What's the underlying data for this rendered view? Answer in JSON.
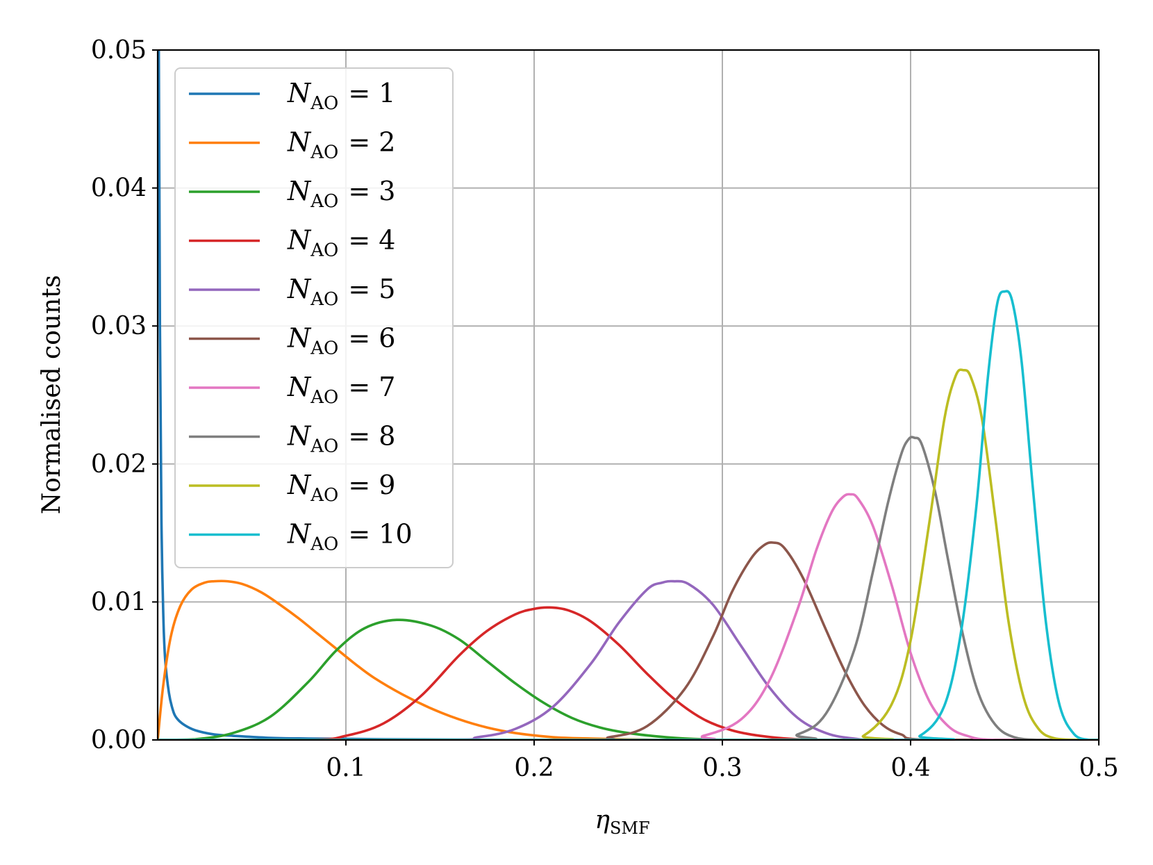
{
  "chart_data": {
    "type": "line",
    "title": "",
    "xlabel": "η",
    "xlabel_sub": "SMF",
    "ylabel": "Normalised counts",
    "xlim": [
      0.0,
      0.5
    ],
    "ylim": [
      0.0,
      0.05
    ],
    "xticks": [
      {
        "value": 0.1,
        "label": "0.1"
      },
      {
        "value": 0.2,
        "label": "0.2"
      },
      {
        "value": 0.3,
        "label": "0.3"
      },
      {
        "value": 0.4,
        "label": "0.4"
      },
      {
        "value": 0.5,
        "label": "0.5"
      }
    ],
    "yticks": [
      {
        "value": 0.0,
        "label": "0.00"
      },
      {
        "value": 0.01,
        "label": "0.01"
      },
      {
        "value": 0.02,
        "label": "0.02"
      },
      {
        "value": 0.03,
        "label": "0.03"
      },
      {
        "value": 0.04,
        "label": "0.04"
      },
      {
        "value": 0.05,
        "label": "0.05"
      }
    ],
    "grid": true,
    "legend_position": "top-left",
    "series": [
      {
        "name": "N_AO = 1",
        "legend_var": "N",
        "legend_sub": "AO",
        "legend_value": "= 1",
        "color": "#1f77b4",
        "x": [
          0.0,
          0.0006,
          0.0012,
          0.002,
          0.003,
          0.004,
          0.006,
          0.008,
          0.01,
          0.014,
          0.02,
          0.03,
          0.04,
          0.06,
          0.08,
          0.12,
          0.2,
          0.3,
          0.5
        ],
        "y": [
          0.05,
          0.05,
          0.03,
          0.016,
          0.009,
          0.0058,
          0.0034,
          0.0022,
          0.0016,
          0.0011,
          0.0007,
          0.0004,
          0.0003,
          0.00015,
          0.0001,
          5e-05,
          0.0,
          0.0,
          0.0
        ]
      },
      {
        "name": "N_AO = 2",
        "legend_var": "N",
        "legend_sub": "AO",
        "legend_value": "= 2",
        "color": "#ff7f0e",
        "x": [
          0.0,
          0.003,
          0.007,
          0.012,
          0.018,
          0.025,
          0.03,
          0.037,
          0.045,
          0.055,
          0.065,
          0.075,
          0.085,
          0.095,
          0.105,
          0.115,
          0.13,
          0.145,
          0.16,
          0.175,
          0.19,
          0.21,
          0.23,
          0.26,
          0.3,
          0.5
        ],
        "y": [
          0.0,
          0.004,
          0.0075,
          0.0097,
          0.0109,
          0.0114,
          0.0115,
          0.0115,
          0.0113,
          0.0107,
          0.0098,
          0.0088,
          0.0077,
          0.0066,
          0.0055,
          0.0045,
          0.0033,
          0.0023,
          0.0015,
          0.0009,
          0.0005,
          0.0002,
          0.0001,
          2e-05,
          0.0,
          0.0
        ]
      },
      {
        "name": "N_AO = 3",
        "legend_var": "N",
        "legend_sub": "AO",
        "legend_value": "= 3",
        "color": "#2ca02c",
        "x": [
          0.0,
          0.02,
          0.04,
          0.06,
          0.08,
          0.095,
          0.11,
          0.127,
          0.145,
          0.16,
          0.175,
          0.19,
          0.205,
          0.22,
          0.235,
          0.25,
          0.27,
          0.29,
          0.32,
          0.5
        ],
        "y": [
          0.0,
          5e-05,
          0.0005,
          0.0017,
          0.0042,
          0.0065,
          0.0081,
          0.0087,
          0.0083,
          0.0073,
          0.0057,
          0.0041,
          0.0027,
          0.0016,
          0.0009,
          0.0005,
          0.0002,
          5e-05,
          0.0,
          0.0
        ]
      },
      {
        "name": "N_AO = 4",
        "legend_var": "N",
        "legend_sub": "AO",
        "legend_value": "= 4",
        "color": "#d62728",
        "x": [
          0.0,
          0.08,
          0.1,
          0.12,
          0.14,
          0.16,
          0.175,
          0.19,
          0.2,
          0.208,
          0.218,
          0.23,
          0.245,
          0.26,
          0.275,
          0.29,
          0.305,
          0.32,
          0.34,
          0.37,
          0.5
        ],
        "y": [
          0.0,
          0.0,
          0.0003,
          0.0012,
          0.0032,
          0.0061,
          0.0079,
          0.0091,
          0.0095,
          0.0096,
          0.0094,
          0.0086,
          0.0069,
          0.0048,
          0.0029,
          0.0015,
          0.0007,
          0.0003,
          5e-05,
          0.0,
          0.0
        ]
      },
      {
        "name": "N_AO = 5",
        "legend_var": "N",
        "legend_sub": "AO",
        "legend_value": "= 5",
        "color": "#9467bd",
        "x": [
          0.0,
          0.15,
          0.17,
          0.19,
          0.21,
          0.23,
          0.245,
          0.26,
          0.268,
          0.274,
          0.282,
          0.295,
          0.31,
          0.325,
          0.34,
          0.355,
          0.37,
          0.39,
          0.5
        ],
        "y": [
          0.0,
          0.0,
          0.0002,
          0.0008,
          0.0024,
          0.0055,
          0.0085,
          0.0109,
          0.0114,
          0.0115,
          0.0113,
          0.0098,
          0.0068,
          0.0038,
          0.0016,
          0.0005,
          0.0001,
          0.0,
          0.0
        ]
      },
      {
        "name": "N_AO = 6",
        "legend_var": "N",
        "legend_sub": "AO",
        "legend_value": "= 6",
        "color": "#8c564b",
        "x": [
          0.0,
          0.22,
          0.24,
          0.26,
          0.28,
          0.295,
          0.305,
          0.315,
          0.322,
          0.327,
          0.333,
          0.343,
          0.355,
          0.365,
          0.375,
          0.385,
          0.395,
          0.41,
          0.5
        ],
        "y": [
          0.0,
          0.0,
          0.0002,
          0.001,
          0.0037,
          0.0075,
          0.0107,
          0.0131,
          0.0141,
          0.0143,
          0.0139,
          0.0117,
          0.008,
          0.005,
          0.0026,
          0.0011,
          0.0004,
          0.0,
          0.0
        ]
      },
      {
        "name": "N_AO = 7",
        "legend_var": "N",
        "legend_sub": "AO",
        "legend_value": "= 7",
        "color": "#e377c2",
        "x": [
          0.0,
          0.27,
          0.29,
          0.31,
          0.325,
          0.34,
          0.35,
          0.358,
          0.364,
          0.368,
          0.372,
          0.38,
          0.39,
          0.4,
          0.41,
          0.42,
          0.43,
          0.445,
          0.5
        ],
        "y": [
          0.0,
          0.0,
          0.0003,
          0.0015,
          0.0043,
          0.0095,
          0.0138,
          0.0165,
          0.0176,
          0.0178,
          0.0175,
          0.0155,
          0.0112,
          0.0063,
          0.0028,
          0.001,
          0.0003,
          0.0,
          0.0
        ]
      },
      {
        "name": "N_AO = 8",
        "legend_var": "N",
        "legend_sub": "AO",
        "legend_value": "= 8",
        "color": "#7f7f7f",
        "x": [
          0.0,
          0.32,
          0.34,
          0.355,
          0.37,
          0.38,
          0.388,
          0.395,
          0.399,
          0.402,
          0.406,
          0.413,
          0.42,
          0.428,
          0.436,
          0.445,
          0.455,
          0.47,
          0.5
        ],
        "y": [
          0.0,
          0.0,
          0.0004,
          0.0019,
          0.0065,
          0.0122,
          0.0172,
          0.0207,
          0.0218,
          0.0219,
          0.0214,
          0.018,
          0.013,
          0.0075,
          0.0034,
          0.0011,
          0.0002,
          0.0,
          0.0
        ]
      },
      {
        "name": "N_AO = 9",
        "legend_var": "N",
        "legend_sub": "AO",
        "legend_value": "= 9",
        "color": "#bcbd22",
        "x": [
          0.0,
          0.36,
          0.375,
          0.39,
          0.4,
          0.41,
          0.418,
          0.424,
          0.428,
          0.432,
          0.438,
          0.445,
          0.452,
          0.46,
          0.468,
          0.477,
          0.49,
          0.5
        ],
        "y": [
          0.0,
          0.0,
          0.0003,
          0.0026,
          0.0072,
          0.0158,
          0.0233,
          0.0264,
          0.0268,
          0.0263,
          0.0232,
          0.0161,
          0.0086,
          0.0031,
          0.0008,
          0.0001,
          0.0,
          0.0
        ]
      },
      {
        "name": "N_AO = 10",
        "legend_var": "N",
        "legend_sub": "AO",
        "legend_value": "= 10",
        "color": "#17becf",
        "x": [
          0.0,
          0.39,
          0.405,
          0.418,
          0.427,
          0.435,
          0.441,
          0.446,
          0.45,
          0.454,
          0.459,
          0.465,
          0.472,
          0.479,
          0.487,
          0.495,
          0.5
        ],
        "y": [
          0.0,
          0.0,
          0.0003,
          0.0025,
          0.008,
          0.017,
          0.0262,
          0.0316,
          0.0325,
          0.0318,
          0.0274,
          0.0182,
          0.0084,
          0.0026,
          0.0004,
          0.0,
          0.0
        ]
      }
    ]
  }
}
